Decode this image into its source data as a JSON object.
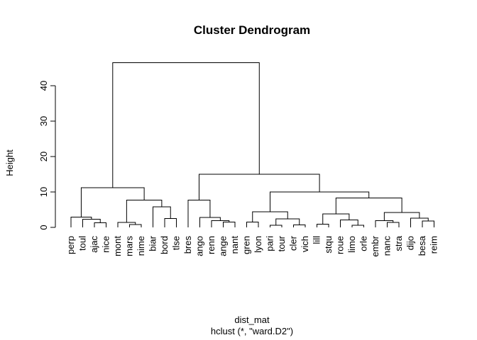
{
  "chart_data": {
    "type": "dendrogram",
    "title": "Cluster Dendrogram",
    "ylabel": "Height",
    "xlabel": "dist_mat",
    "subtitle": "hclust (*, \"ward.D2\")",
    "ylim": [
      0,
      46.5
    ],
    "yticks": [
      0,
      10,
      20,
      30,
      40
    ],
    "labels": [
      "perp",
      "toul",
      "ajac",
      "nice",
      "mont",
      "mars",
      "nime",
      "biar",
      "bord",
      "tlse",
      "bres",
      "ango",
      "renn",
      "ange",
      "nant",
      "gren",
      "lyon",
      "pari",
      "tour",
      "cler",
      "vich",
      "lill",
      "stqu",
      "roue",
      "limo",
      "orle",
      "embr",
      "nanc",
      "stra",
      "dijo",
      "besa",
      "reim"
    ],
    "merges": [
      {
        "id": "m1",
        "a": "L2",
        "b": "L3",
        "height": 1.3
      },
      {
        "id": "m2",
        "a": "L1",
        "b": "m1",
        "height": 2.3
      },
      {
        "id": "m3",
        "a": "L0",
        "b": "m2",
        "height": 2.9
      },
      {
        "id": "m4",
        "a": "L5",
        "b": "L6",
        "height": 0.8
      },
      {
        "id": "m5",
        "a": "L4",
        "b": "m4",
        "height": 1.4
      },
      {
        "id": "m6",
        "a": "L8",
        "b": "L9",
        "height": 2.5
      },
      {
        "id": "m7",
        "a": "L7",
        "b": "m6",
        "height": 5.8
      },
      {
        "id": "m8",
        "a": "m5",
        "b": "m7",
        "height": 7.7
      },
      {
        "id": "m9",
        "a": "m3",
        "b": "m8",
        "height": 11.2
      },
      {
        "id": "m10",
        "a": "L13",
        "b": "L14",
        "height": 1.5
      },
      {
        "id": "m11",
        "a": "L12",
        "b": "m10",
        "height": 1.9
      },
      {
        "id": "m12",
        "a": "L11",
        "b": "m11",
        "height": 2.8
      },
      {
        "id": "m13",
        "a": "L10",
        "b": "m12",
        "height": 7.7
      },
      {
        "id": "m14",
        "a": "L15",
        "b": "L16",
        "height": 1.5
      },
      {
        "id": "m15",
        "a": "L17",
        "b": "L18",
        "height": 0.6
      },
      {
        "id": "m16",
        "a": "L19",
        "b": "L20",
        "height": 0.7
      },
      {
        "id": "m17",
        "a": "m15",
        "b": "m16",
        "height": 2.4
      },
      {
        "id": "m18",
        "a": "m14",
        "b": "m17",
        "height": 4.4
      },
      {
        "id": "m19",
        "a": "L21",
        "b": "L22",
        "height": 0.9
      },
      {
        "id": "m20",
        "a": "L24",
        "b": "L25",
        "height": 0.6
      },
      {
        "id": "m21",
        "a": "L23",
        "b": "m20",
        "height": 2.1
      },
      {
        "id": "m22",
        "a": "m19",
        "b": "m21",
        "height": 3.8
      },
      {
        "id": "m23",
        "a": "L27",
        "b": "L28",
        "height": 1.4
      },
      {
        "id": "m24",
        "a": "L26",
        "b": "m23",
        "height": 1.9
      },
      {
        "id": "m25",
        "a": "L30",
        "b": "L31",
        "height": 1.8
      },
      {
        "id": "m26",
        "a": "L29",
        "b": "m25",
        "height": 2.6
      },
      {
        "id": "m27",
        "a": "m24",
        "b": "m26",
        "height": 4.2
      },
      {
        "id": "m28",
        "a": "m22",
        "b": "m27",
        "height": 8.3
      },
      {
        "id": "m29",
        "a": "m18",
        "b": "m28",
        "height": 10.0
      },
      {
        "id": "m30",
        "a": "m13",
        "b": "m29",
        "height": 15.0
      },
      {
        "id": "m31",
        "a": "m9",
        "b": "m30",
        "height": 46.5
      }
    ]
  }
}
